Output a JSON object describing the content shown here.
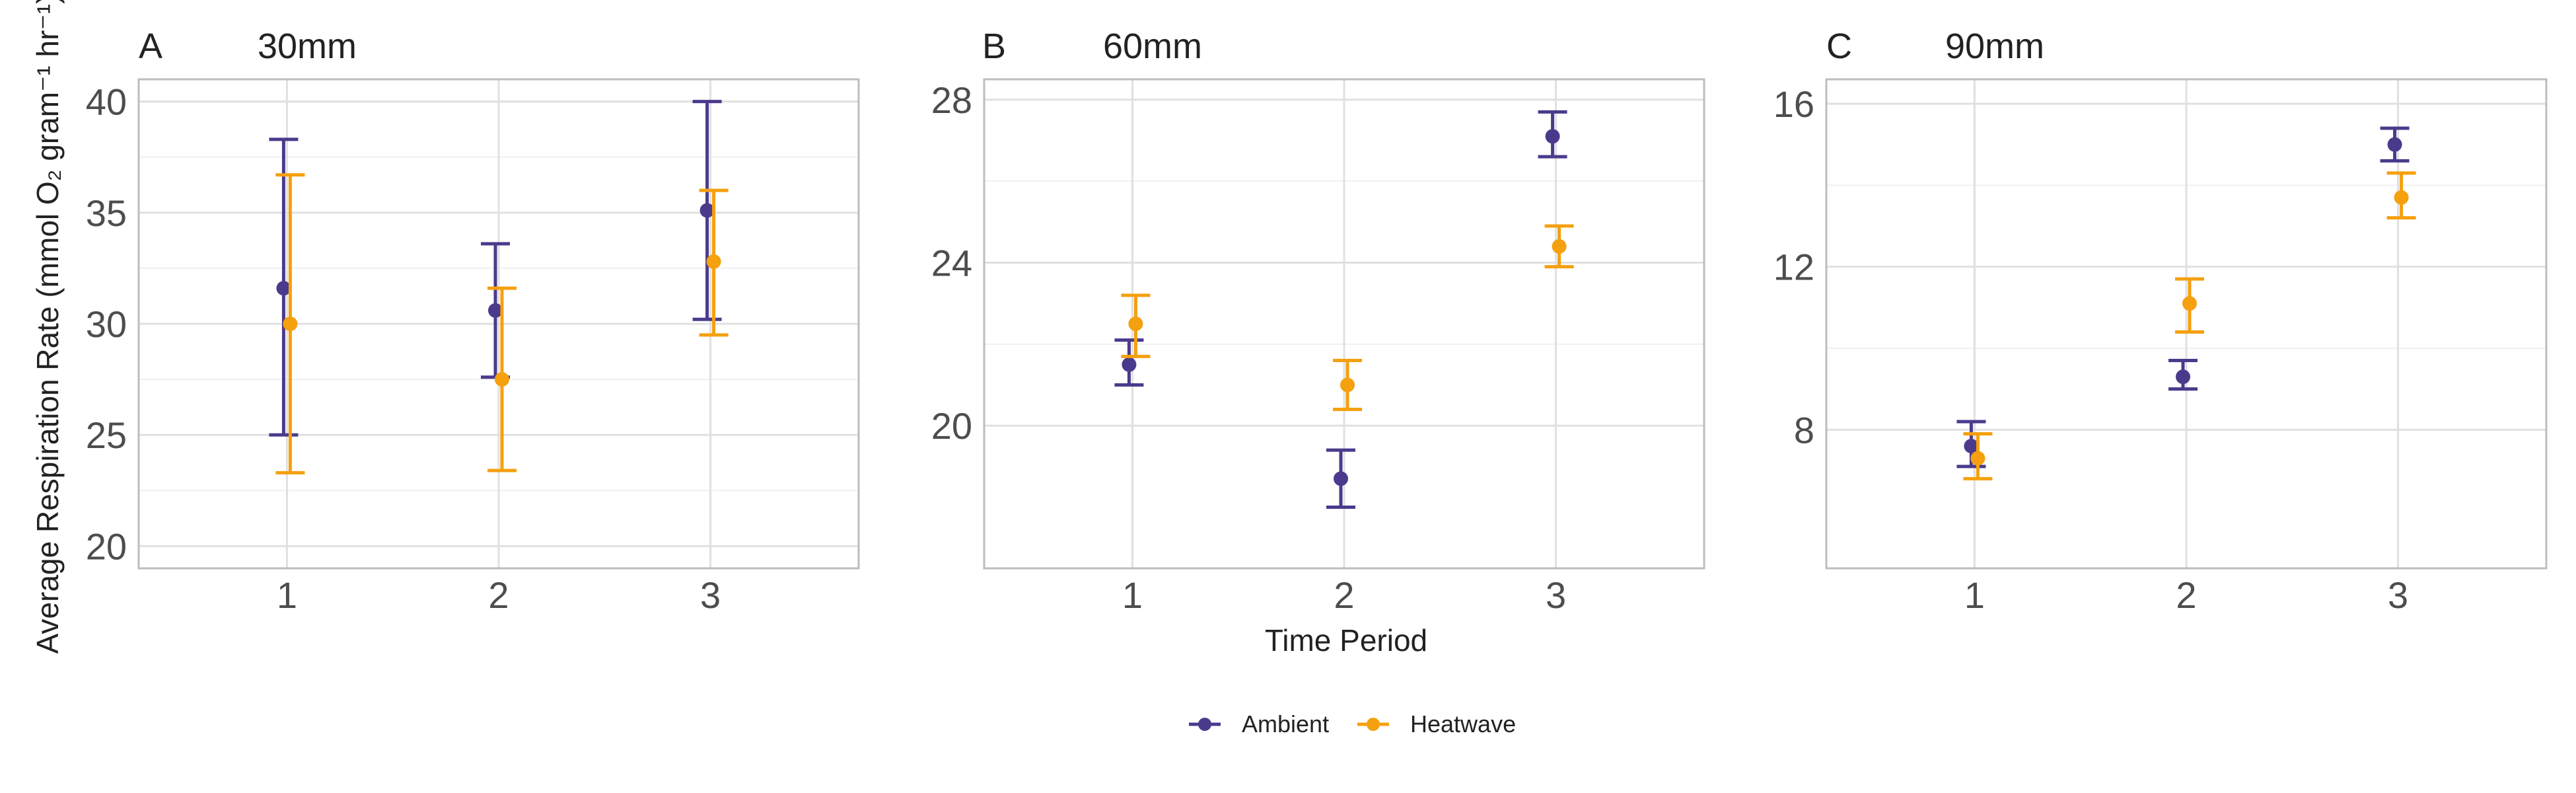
{
  "y_axis_label": "Average Respiration Rate (mmol O₂ gram⁻¹ hr⁻¹)",
  "colors": {
    "Ambient": "#4B3A8C",
    "Heatwave": "#F5A00F"
  },
  "legend": [
    "Ambient",
    "Heatwave"
  ],
  "chart_data": [
    {
      "type": "scatter",
      "panel_tag": "A",
      "title": "30mm",
      "xlabel": "",
      "ylabel": "Average Respiration Rate (mmol O₂ gram⁻¹ hr⁻¹)",
      "categories": [
        "1",
        "2",
        "3"
      ],
      "ylim": [
        19,
        41
      ],
      "yticks": [
        20,
        25,
        30,
        35,
        40
      ],
      "grid": true,
      "series": [
        {
          "name": "Ambient",
          "values": [
            31.6,
            30.6,
            35.1
          ],
          "lower": [
            25.0,
            27.6,
            30.2
          ],
          "upper": [
            38.3,
            33.6,
            40.0
          ]
        },
        {
          "name": "Heatwave",
          "values": [
            30.0,
            27.5,
            32.8
          ],
          "lower": [
            23.3,
            23.4,
            29.5
          ],
          "upper": [
            36.7,
            31.6,
            36.0
          ]
        }
      ]
    },
    {
      "type": "scatter",
      "panel_tag": "B",
      "title": "60mm",
      "xlabel": "Time Period",
      "ylabel": "",
      "categories": [
        "1",
        "2",
        "3"
      ],
      "ylim": [
        16.5,
        28.5
      ],
      "yticks": [
        20,
        24,
        28
      ],
      "grid": true,
      "series": [
        {
          "name": "Ambient",
          "values": [
            21.5,
            18.7,
            27.1
          ],
          "lower": [
            21.0,
            18.0,
            26.6
          ],
          "upper": [
            22.1,
            19.4,
            27.7
          ]
        },
        {
          "name": "Heatwave",
          "values": [
            22.5,
            21.0,
            24.4
          ],
          "lower": [
            21.7,
            20.4,
            23.9
          ],
          "upper": [
            23.2,
            21.6,
            24.9
          ]
        }
      ]
    },
    {
      "type": "scatter",
      "panel_tag": "C",
      "title": "90mm",
      "xlabel": "",
      "ylabel": "",
      "categories": [
        "1",
        "2",
        "3"
      ],
      "ylim": [
        4.6,
        16.6
      ],
      "yticks": [
        8,
        12,
        16
      ],
      "grid": true,
      "series": [
        {
          "name": "Ambient",
          "values": [
            7.6,
            9.3,
            15.0
          ],
          "lower": [
            7.1,
            9.0,
            14.6
          ],
          "upper": [
            8.2,
            9.7,
            15.4
          ]
        },
        {
          "name": "Heatwave",
          "values": [
            7.3,
            11.1,
            13.7
          ],
          "lower": [
            6.8,
            10.4,
            13.2
          ],
          "upper": [
            7.9,
            11.7,
            14.3
          ]
        }
      ]
    }
  ]
}
